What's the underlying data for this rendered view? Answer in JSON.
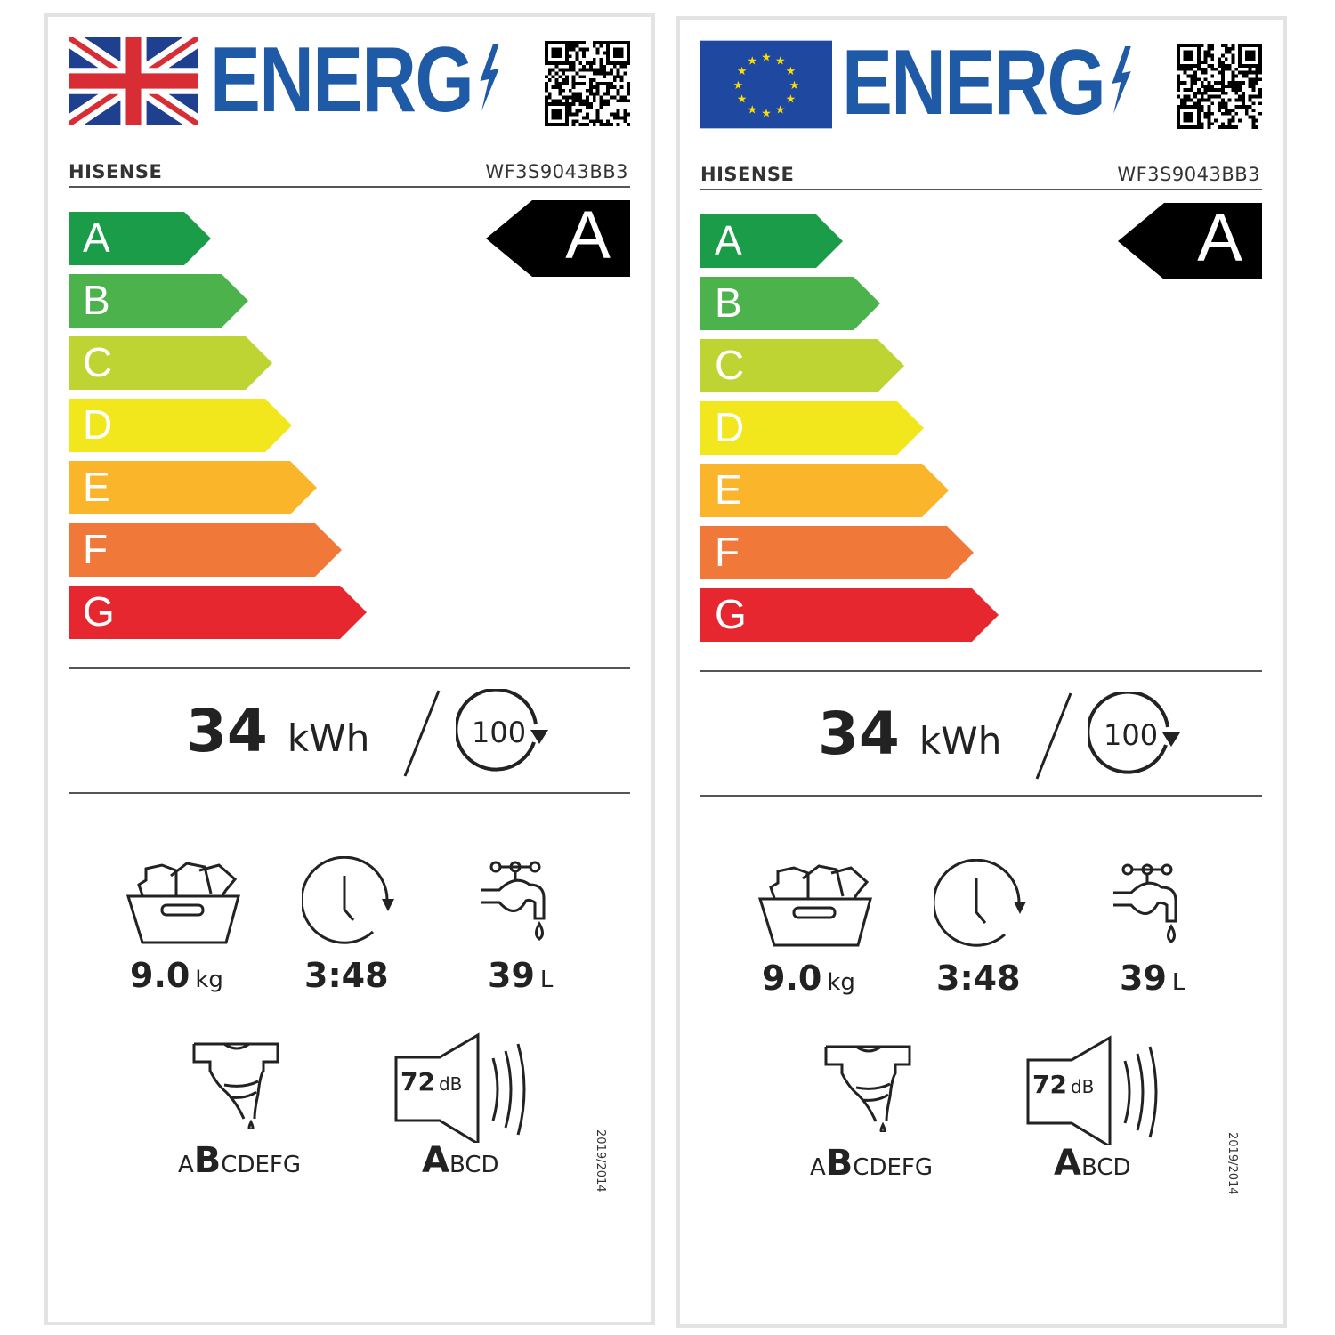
{
  "labels": [
    {
      "region_flag": "uk-flag",
      "energy_title": "ENERG",
      "brand": "HISENSE",
      "model": "WF3S9043BB3",
      "energy_class": "A",
      "consumption_value": "34",
      "consumption_unit": "kWh",
      "cycles": "100",
      "capacity_value": "9.0",
      "capacity_unit": "kg",
      "duration": "3:48",
      "water_value": "39",
      "water_unit": "L",
      "spin_class_pre": "A",
      "spin_class": "B",
      "spin_class_post": "CDEFG",
      "noise_value": "72",
      "noise_unit": "dB",
      "noise_class": "A",
      "noise_class_post": "BCD",
      "regulation": "2019/2014"
    },
    {
      "region_flag": "eu-flag",
      "energy_title": "ENERG",
      "brand": "HISENSE",
      "model": "WF3S9043BB3",
      "energy_class": "A",
      "consumption_value": "34",
      "consumption_unit": "kWh",
      "cycles": "100",
      "capacity_value": "9.0",
      "capacity_unit": "kg",
      "duration": "3:48",
      "water_value": "39",
      "water_unit": "L",
      "spin_class_pre": "A",
      "spin_class": "B",
      "spin_class_post": "CDEFG",
      "noise_value": "72",
      "noise_unit": "dB",
      "noise_class": "A",
      "noise_class_post": "BCD",
      "regulation": "2019/2014"
    }
  ],
  "scale": [
    {
      "letter": "A",
      "color": "#1a9c48"
    },
    {
      "letter": "B",
      "color": "#4cb34c"
    },
    {
      "letter": "C",
      "color": "#bdd432"
    },
    {
      "letter": "D",
      "color": "#f2e61c"
    },
    {
      "letter": "E",
      "color": "#fbb52a"
    },
    {
      "letter": "F",
      "color": "#f07838"
    },
    {
      "letter": "G",
      "color": "#e7272f"
    }
  ],
  "colors": {
    "energy_blue": "#1f5aa6",
    "class_indicator": "#000000"
  }
}
